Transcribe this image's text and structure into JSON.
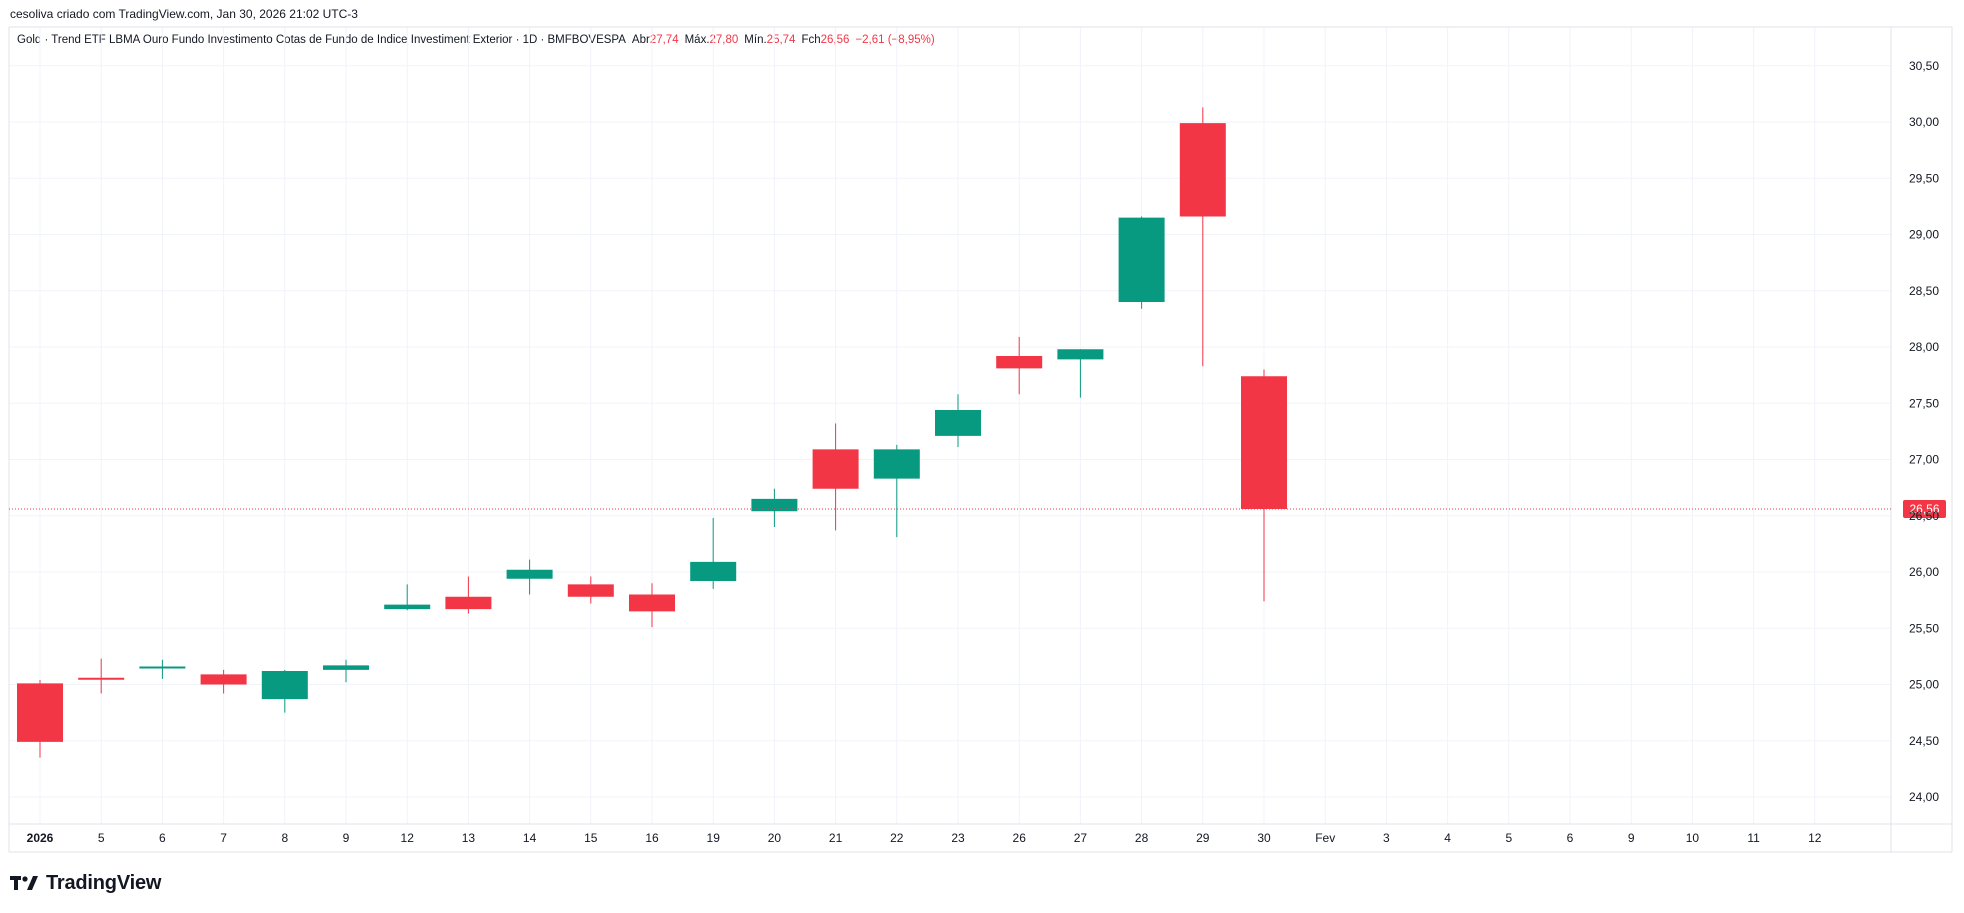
{
  "header": {
    "caption": "cesoliva criado com TradingView.com, Jan 30, 2026 21:02 UTC-3"
  },
  "legend": {
    "symbol": "Gold · Trend ETF LBMA Ouro Fundo Investimento Cotas de Fundo de Indice Investiment Exterior · 1D · BMFBOVESPA",
    "open_label": "Abr",
    "open_value": "27,74",
    "high_label": "Máx.",
    "high_value": "27,80",
    "low_label": "Mín.",
    "low_value": "25,74",
    "close_label": "Fch",
    "close_value": "26,56",
    "change_value": "−2,61 (−8,95%)"
  },
  "branding": {
    "logo_text": "TradingView",
    "logo_icon": "tradingview-logo-icon"
  },
  "colors": {
    "up": "#089981",
    "down": "#f23645",
    "grid": "#f0f3fa",
    "axis_text": "#131722",
    "price_line": "#f23645"
  },
  "chart_data": {
    "type": "candlestick",
    "y_axis_ticks": [
      "30,50",
      "30,00",
      "29,50",
      "29,00",
      "28,50",
      "28,00",
      "27,50",
      "27,00",
      "26,50",
      "26,00",
      "25,50",
      "25,00",
      "24,50",
      "24,00"
    ],
    "ylim": [
      23.6,
      30.9
    ],
    "current_price": 26.56,
    "current_price_label": "26,56",
    "x_tick_labels": [
      "2026",
      "5",
      "6",
      "7",
      "8",
      "9",
      "12",
      "13",
      "14",
      "15",
      "16",
      "19",
      "20",
      "21",
      "22",
      "23",
      "26",
      "27",
      "28",
      "29",
      "30",
      "Fev",
      "3",
      "4",
      "5",
      "6",
      "9",
      "10",
      "11",
      "12"
    ],
    "candles": [
      {
        "date": "2026",
        "open": 25.01,
        "high": 25.04,
        "low": 24.35,
        "close": 24.49
      },
      {
        "date": "5",
        "open": 25.06,
        "high": 25.23,
        "low": 24.92,
        "close": 25.05
      },
      {
        "date": "6",
        "open": 25.15,
        "high": 25.22,
        "low": 25.05,
        "close": 25.16
      },
      {
        "date": "7",
        "open": 25.09,
        "high": 25.13,
        "low": 24.92,
        "close": 25.0
      },
      {
        "date": "8",
        "open": 24.87,
        "high": 25.13,
        "low": 24.75,
        "close": 25.12
      },
      {
        "date": "9",
        "open": 25.13,
        "high": 25.22,
        "low": 25.02,
        "close": 25.17
      },
      {
        "date": "12",
        "open": 25.67,
        "high": 25.89,
        "low": 25.66,
        "close": 25.71
      },
      {
        "date": "13",
        "open": 25.78,
        "high": 25.96,
        "low": 25.63,
        "close": 25.67
      },
      {
        "date": "14",
        "open": 25.94,
        "high": 26.11,
        "low": 25.8,
        "close": 26.02
      },
      {
        "date": "15",
        "open": 25.89,
        "high": 25.96,
        "low": 25.72,
        "close": 25.78
      },
      {
        "date": "16",
        "open": 25.8,
        "high": 25.9,
        "low": 25.51,
        "close": 25.65
      },
      {
        "date": "19",
        "open": 25.92,
        "high": 26.48,
        "low": 25.85,
        "close": 26.09
      },
      {
        "date": "20",
        "open": 26.54,
        "high": 26.74,
        "low": 26.4,
        "close": 26.65
      },
      {
        "date": "21",
        "open": 27.09,
        "high": 27.32,
        "low": 26.37,
        "close": 26.74
      },
      {
        "date": "22",
        "open": 26.83,
        "high": 27.13,
        "low": 26.31,
        "close": 27.09
      },
      {
        "date": "23",
        "open": 27.21,
        "high": 27.58,
        "low": 27.11,
        "close": 27.44
      },
      {
        "date": "26",
        "open": 27.92,
        "high": 28.09,
        "low": 27.58,
        "close": 27.81
      },
      {
        "date": "27",
        "open": 27.89,
        "high": 27.98,
        "low": 27.55,
        "close": 27.98
      },
      {
        "date": "28",
        "open": 28.4,
        "high": 29.16,
        "low": 28.34,
        "close": 29.15
      },
      {
        "date": "29",
        "open": 29.99,
        "high": 30.13,
        "low": 27.83,
        "close": 29.16
      },
      {
        "date": "30",
        "open": 27.74,
        "high": 27.8,
        "low": 25.74,
        "close": 26.56
      }
    ]
  }
}
